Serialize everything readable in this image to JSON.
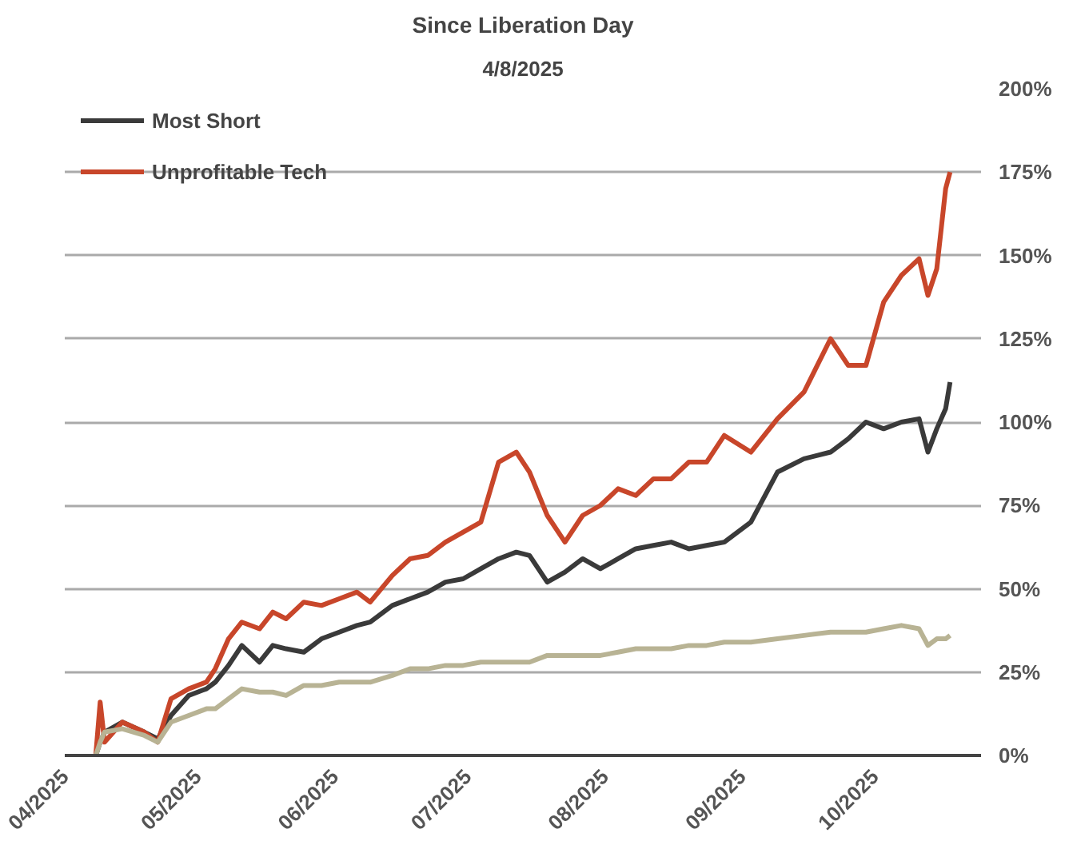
{
  "chart_data": {
    "type": "line",
    "title": "Since Liberation Day",
    "subtitle": "4/8/2025",
    "x": [
      "2025-04-08",
      "2025-04-09",
      "2025-04-10",
      "2025-04-14",
      "2025-04-19",
      "2025-04-22",
      "2025-04-25",
      "2025-04-29",
      "2025-05-03",
      "2025-05-05",
      "2025-05-08",
      "2025-05-11",
      "2025-05-15",
      "2025-05-18",
      "2025-05-21",
      "2025-05-25",
      "2025-05-29",
      "2025-06-02",
      "2025-06-06",
      "2025-06-09",
      "2025-06-14",
      "2025-06-18",
      "2025-06-22",
      "2025-06-26",
      "2025-06-30",
      "2025-07-04",
      "2025-07-08",
      "2025-07-12",
      "2025-07-15",
      "2025-07-19",
      "2025-07-23",
      "2025-07-27",
      "2025-07-31",
      "2025-08-04",
      "2025-08-08",
      "2025-08-12",
      "2025-08-16",
      "2025-08-20",
      "2025-08-24",
      "2025-08-28",
      "2025-09-03",
      "2025-09-09",
      "2025-09-15",
      "2025-09-21",
      "2025-09-25",
      "2025-09-29",
      "2025-10-03",
      "2025-10-07",
      "2025-10-11",
      "2025-10-13",
      "2025-10-15",
      "2025-10-17",
      "2025-10-18"
    ],
    "series": [
      {
        "name": "Most Short",
        "color": "#3a3a3a",
        "values": [
          0,
          4,
          7,
          10,
          7,
          5,
          12,
          18,
          20,
          22,
          27,
          33,
          28,
          33,
          32,
          31,
          35,
          37,
          39,
          40,
          45,
          47,
          49,
          52,
          53,
          56,
          59,
          61,
          60,
          52,
          55,
          59,
          56,
          59,
          62,
          63,
          64,
          62,
          63,
          64,
          70,
          85,
          89,
          91,
          95,
          100,
          98,
          100,
          101,
          91,
          98,
          104,
          112
        ]
      },
      {
        "name": "Unprofitable Tech",
        "color": "#c8462a",
        "values": [
          0,
          16,
          4,
          10,
          7,
          4,
          17,
          20,
          22,
          26,
          35,
          40,
          38,
          43,
          41,
          46,
          45,
          47,
          49,
          46,
          54,
          59,
          60,
          64,
          67,
          70,
          88,
          91,
          85,
          72,
          64,
          72,
          75,
          80,
          78,
          83,
          83,
          88,
          88,
          96,
          91,
          101,
          109,
          125,
          117,
          117,
          136,
          144,
          149,
          138,
          146,
          170,
          175
        ]
      },
      {
        "color": "#b8b394",
        "values": [
          0,
          4,
          7,
          8,
          6,
          4,
          10,
          12,
          14,
          14,
          17,
          20,
          19,
          19,
          18,
          21,
          21,
          22,
          22,
          22,
          24,
          26,
          26,
          27,
          27,
          28,
          28,
          28,
          28,
          30,
          30,
          30,
          30,
          31,
          32,
          32,
          32,
          33,
          33,
          34,
          34,
          35,
          36,
          37,
          37,
          37,
          38,
          39,
          38,
          33,
          35,
          35,
          36
        ]
      }
    ],
    "xlim": [
      "2025-04-01",
      "2025-10-25"
    ],
    "xticks": [
      {
        "value": "2025-04-01",
        "label": "04/2025"
      },
      {
        "value": "2025-05-01",
        "label": "05/2025"
      },
      {
        "value": "2025-06-01",
        "label": "06/2025"
      },
      {
        "value": "2025-07-01",
        "label": "07/2025"
      },
      {
        "value": "2025-08-01",
        "label": "08/2025"
      },
      {
        "value": "2025-09-01",
        "label": "09/2025"
      },
      {
        "value": "2025-10-01",
        "label": "10/2025"
      }
    ],
    "ylim": [
      0,
      200
    ],
    "yticks": [
      {
        "value": 0,
        "label": "0%"
      },
      {
        "value": 25,
        "label": "25%"
      },
      {
        "value": 50,
        "label": "50%"
      },
      {
        "value": 75,
        "label": "75%"
      },
      {
        "value": 100,
        "label": "100%"
      },
      {
        "value": 125,
        "label": "125%"
      },
      {
        "value": 150,
        "label": "150%"
      },
      {
        "value": 175,
        "label": "175%"
      },
      {
        "value": 200,
        "label": "200%"
      }
    ],
    "grid": "y",
    "legend": "top left",
    "line_style": "solid"
  }
}
